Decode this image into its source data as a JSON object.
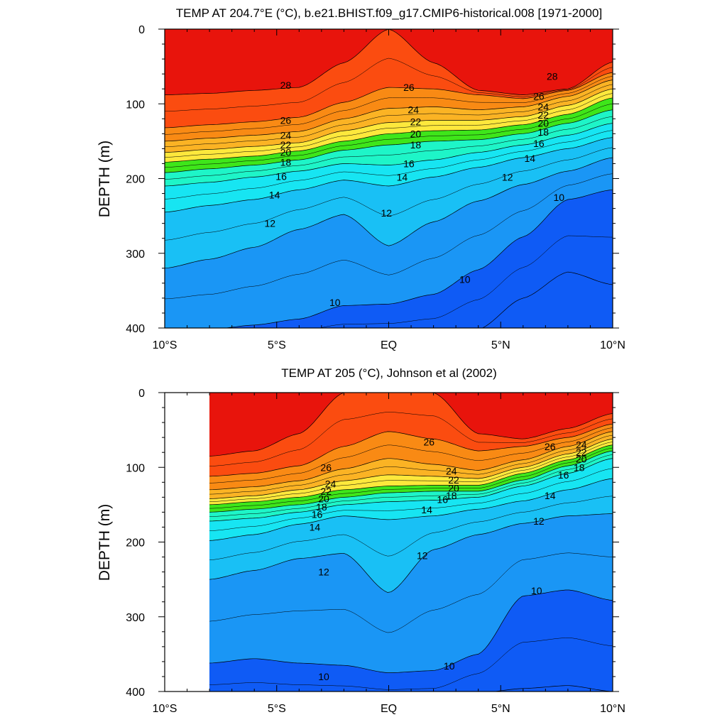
{
  "chart_data": [
    {
      "type": "heatmap",
      "title": "TEMP AT 204.7°E (°C), b.e21.BHIST.f09_g17.CMIP6-historical.008 [1971-2000]",
      "ylabel": "DEPTH (m)",
      "xlim": [
        -10,
        10
      ],
      "ylim": [
        400,
        0
      ],
      "x_ticks": [
        -10,
        -5,
        0,
        5,
        10
      ],
      "x_tick_labels": [
        "10°S",
        "5°S",
        "EQ",
        "5°N",
        "10°N"
      ],
      "y_ticks": [
        0,
        100,
        200,
        300,
        400
      ],
      "y_tick_labels": [
        "0",
        "100",
        "200",
        "300",
        "400"
      ],
      "data_xlim": [
        -10,
        10
      ],
      "levels": [
        8,
        10,
        12,
        14,
        16,
        18,
        20,
        22,
        24,
        26,
        28
      ],
      "contour_labels": [
        {
          "x": -4.6,
          "y": 75,
          "text": "28"
        },
        {
          "x": -4.6,
          "y": 122,
          "text": "26"
        },
        {
          "x": -4.6,
          "y": 142,
          "text": "24"
        },
        {
          "x": -4.6,
          "y": 155,
          "text": "22"
        },
        {
          "x": -4.6,
          "y": 165,
          "text": "20"
        },
        {
          "x": -4.6,
          "y": 178,
          "text": "18"
        },
        {
          "x": -4.8,
          "y": 197,
          "text": "16"
        },
        {
          "x": -5.1,
          "y": 222,
          "text": "14"
        },
        {
          "x": -5.3,
          "y": 260,
          "text": "12"
        },
        {
          "x": -2.4,
          "y": 366,
          "text": "10"
        },
        {
          "x": 0.9,
          "y": 78,
          "text": "26"
        },
        {
          "x": 1.1,
          "y": 108,
          "text": "24"
        },
        {
          "x": 1.2,
          "y": 124,
          "text": "22"
        },
        {
          "x": 1.2,
          "y": 140,
          "text": "20"
        },
        {
          "x": 1.2,
          "y": 155,
          "text": "18"
        },
        {
          "x": 0.9,
          "y": 180,
          "text": "16"
        },
        {
          "x": 0.6,
          "y": 198,
          "text": "14"
        },
        {
          "x": -0.1,
          "y": 246,
          "text": "12"
        },
        {
          "x": 3.4,
          "y": 335,
          "text": "10"
        },
        {
          "x": 7.3,
          "y": 63,
          "text": "28"
        },
        {
          "x": 6.7,
          "y": 90,
          "text": "26"
        },
        {
          "x": 6.9,
          "y": 104,
          "text": "24"
        },
        {
          "x": 6.9,
          "y": 115,
          "text": "22"
        },
        {
          "x": 6.9,
          "y": 126,
          "text": "20"
        },
        {
          "x": 6.9,
          "y": 138,
          "text": "18"
        },
        {
          "x": 6.7,
          "y": 153,
          "text": "16"
        },
        {
          "x": 6.3,
          "y": 173,
          "text": "14"
        },
        {
          "x": 5.3,
          "y": 198,
          "text": "12"
        },
        {
          "x": 7.6,
          "y": 225,
          "text": "10"
        }
      ]
    },
    {
      "type": "heatmap",
      "title": "TEMP AT 205 (°C), Johnson et al (2002)",
      "ylabel": "DEPTH (m)",
      "xlim": [
        -10,
        10
      ],
      "ylim": [
        400,
        0
      ],
      "x_ticks": [
        -10,
        -5,
        0,
        5,
        10
      ],
      "x_tick_labels": [
        "10°S",
        "5°S",
        "EQ",
        "5°N",
        "10°N"
      ],
      "y_ticks": [
        0,
        100,
        200,
        300,
        400
      ],
      "y_tick_labels": [
        "0",
        "100",
        "200",
        "300",
        "400"
      ],
      "data_xlim": [
        -8,
        10
      ],
      "levels": [
        8,
        10,
        12,
        14,
        16,
        18,
        20,
        22,
        24,
        26,
        28
      ],
      "contour_labels": [
        {
          "x": -2.8,
          "y": 100,
          "text": "26"
        },
        {
          "x": -2.6,
          "y": 122,
          "text": "24"
        },
        {
          "x": -2.8,
          "y": 132,
          "text": "22"
        },
        {
          "x": -2.9,
          "y": 142,
          "text": "20"
        },
        {
          "x": -3.0,
          "y": 153,
          "text": "18"
        },
        {
          "x": -3.2,
          "y": 163,
          "text": "16"
        },
        {
          "x": -3.3,
          "y": 180,
          "text": "14"
        },
        {
          "x": -2.9,
          "y": 240,
          "text": "12"
        },
        {
          "x": -2.9,
          "y": 380,
          "text": "10"
        },
        {
          "x": 1.8,
          "y": 66,
          "text": "26"
        },
        {
          "x": 2.8,
          "y": 105,
          "text": "24"
        },
        {
          "x": 2.9,
          "y": 117,
          "text": "22"
        },
        {
          "x": 2.9,
          "y": 128,
          "text": "20"
        },
        {
          "x": 2.8,
          "y": 138,
          "text": "18"
        },
        {
          "x": 2.4,
          "y": 143,
          "text": "16"
        },
        {
          "x": 1.7,
          "y": 157,
          "text": "14"
        },
        {
          "x": 1.5,
          "y": 218,
          "text": "12"
        },
        {
          "x": 2.7,
          "y": 366,
          "text": "10"
        },
        {
          "x": 7.2,
          "y": 72,
          "text": "26"
        },
        {
          "x": 8.6,
          "y": 70,
          "text": "24"
        },
        {
          "x": 8.6,
          "y": 80,
          "text": "22"
        },
        {
          "x": 8.6,
          "y": 89,
          "text": "20"
        },
        {
          "x": 8.5,
          "y": 100,
          "text": "18"
        },
        {
          "x": 7.8,
          "y": 110,
          "text": "16"
        },
        {
          "x": 7.2,
          "y": 138,
          "text": "14"
        },
        {
          "x": 6.7,
          "y": 172,
          "text": "12"
        },
        {
          "x": 6.6,
          "y": 265,
          "text": "10"
        }
      ]
    }
  ]
}
